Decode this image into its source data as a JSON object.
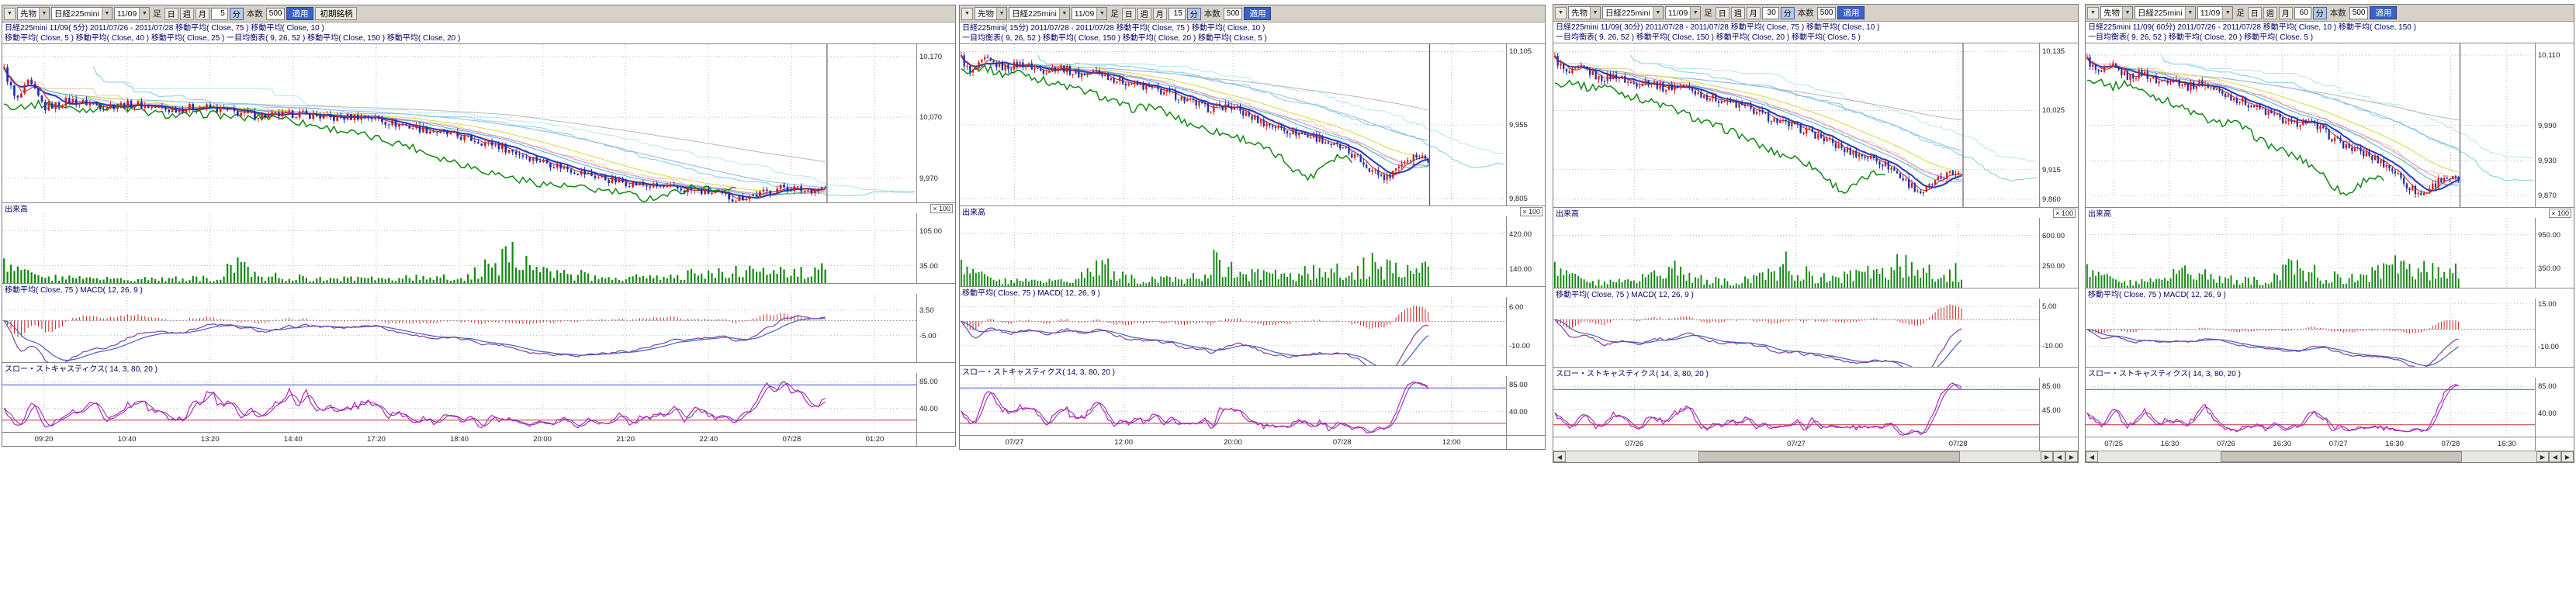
{
  "colors": {
    "up": "#cc2020",
    "down": "#2030a8",
    "volume": "#108810",
    "chikou": "#108810",
    "ma5": "#d02020",
    "ma10": "#2040c0",
    "ma20": "#48b8b8",
    "ma25": "#d888d8",
    "ma40": "#d8d840",
    "ma75": "#8fb8e8",
    "ma150": "#b8b8b8",
    "spanA": "#7fcfe2",
    "spanB": "#b9e4f0",
    "tenkan": "#d9b9e6",
    "kijun": "#e6c9a0",
    "macd": "#8040a0",
    "signal": "#4060c0",
    "hist": "#d02020",
    "stochK": "#c020c0",
    "stochD": "#7030a0",
    "stochHigh": "#4050d0",
    "stochLow": "#c03030",
    "grid": "#bcbcbc",
    "currentLine": "#404040"
  },
  "panels": [
    {
      "geom": {
        "bars": 240,
        "shift": 26
      },
      "toolbar": {
        "market": "先物",
        "symbol": "日経225mini",
        "contract": "11/09",
        "ashi": "足",
        "p_day": "日",
        "p_week": "週",
        "p_month": "月",
        "interval": "5",
        "unit": "分",
        "bars_label": "本数",
        "bars_value": "500",
        "apply": "適用",
        "extra": "初期銘柄"
      },
      "legend1": "日経225mini 11/09( 5分)  2011/07/26 - 2011/07/28   移動平均( Close, 75 )   移動平均( Close, 10 )",
      "legend2": "移動平均( Close, 5 )   移動平均( Close, 40 )   移動平均( Close, 25 )   一目均衡表( 9, 26, 52 )   移動平均( Close, 150 )   移動平均( Close, 20 )",
      "volume_title": "出来高",
      "volume_scale": "× 100",
      "macd_title": "移動平均( Close, 75 )    MACD( 12, 26, 9 )",
      "stoch_title": "スロー・ストキャスティクス( 14, 3, 80, 20 )",
      "main_range": [
        9930,
        10190
      ],
      "main_ticks": [
        {
          "v": 10170,
          "label": "10,170"
        },
        {
          "v": 10070,
          "label": "10,070"
        },
        {
          "v": 9970,
          "label": "9,970"
        }
      ],
      "vol_range": [
        0,
        140
      ],
      "vol_ticks": [
        {
          "v": 105,
          "label": "105.00"
        },
        {
          "v": 35,
          "label": "35.00"
        }
      ],
      "macd_range": [
        -14,
        9
      ],
      "macd_ticks": [
        {
          "v": 3.5,
          "label": "3.50"
        },
        {
          "v": -5,
          "label": "-5.00"
        }
      ],
      "stoch_ticks": [
        {
          "v": 85,
          "label": "85.00"
        },
        {
          "v": 40,
          "label": "40.00"
        }
      ],
      "stoch_lines": [
        80,
        20
      ],
      "time_labels": [
        "09:20",
        "10:40",
        "13:20",
        "14:40",
        "17:20",
        "18:40",
        "20:00",
        "21:20",
        "22:40",
        "07/28",
        "01:20"
      ],
      "price_path": [
        [
          0,
          10148
        ],
        [
          0.015,
          10095
        ],
        [
          0.03,
          10128
        ],
        [
          0.05,
          10085
        ],
        [
          0.08,
          10098
        ],
        [
          0.12,
          10088
        ],
        [
          0.16,
          10092
        ],
        [
          0.2,
          10082
        ],
        [
          0.24,
          10088
        ],
        [
          0.28,
          10078
        ],
        [
          0.32,
          10072
        ],
        [
          0.36,
          10076
        ],
        [
          0.4,
          10068
        ],
        [
          0.44,
          10072
        ],
        [
          0.48,
          10058
        ],
        [
          0.52,
          10048
        ],
        [
          0.56,
          10036
        ],
        [
          0.6,
          10024
        ],
        [
          0.63,
          10008
        ],
        [
          0.66,
          9996
        ],
        [
          0.7,
          9980
        ],
        [
          0.74,
          9966
        ],
        [
          0.78,
          9958
        ],
        [
          0.82,
          9952
        ],
        [
          0.86,
          9946
        ],
        [
          0.89,
          9936
        ],
        [
          0.92,
          9944
        ],
        [
          0.95,
          9956
        ],
        [
          0.975,
          9950
        ],
        [
          1,
          9954
        ]
      ],
      "volume_path": [
        [
          0,
          70
        ],
        [
          0.03,
          25
        ],
        [
          0.1,
          14
        ],
        [
          0.2,
          12
        ],
        [
          0.26,
          18
        ],
        [
          0.28,
          60
        ],
        [
          0.31,
          22
        ],
        [
          0.38,
          14
        ],
        [
          0.45,
          12
        ],
        [
          0.5,
          16
        ],
        [
          0.56,
          20
        ],
        [
          0.62,
          80
        ],
        [
          0.66,
          30
        ],
        [
          0.72,
          22
        ],
        [
          0.78,
          18
        ],
        [
          0.84,
          26
        ],
        [
          0.9,
          34
        ],
        [
          0.95,
          30
        ],
        [
          1,
          38
        ]
      ]
    },
    {
      "geom": {
        "bars": 160,
        "shift": 26
      },
      "toolbar": {
        "market": "先物",
        "symbol": "日経225mini",
        "contract": "11/09",
        "ashi": "足",
        "p_day": "日",
        "p_week": "週",
        "p_month": "月",
        "interval": "15",
        "unit": "分",
        "bars_label": "本数",
        "bars_value": "500",
        "apply": "適用"
      },
      "legend1": "日経225mini( 15分)  2011/07/28 - 2011/07/28   移動平均( Close, 75 )   移動平均( Close, 10 )",
      "legend2": "一目均衡表( 9, 26, 52 )   移動平均( Close, 150 )   移動平均( Close, 20 )   移動平均( Close, 5 )",
      "volume_title": "出来高",
      "volume_scale": "× 100",
      "macd_title": "移動平均( Close, 75 )    MACD( 12, 26, 9 )",
      "stoch_title": "スロー・ストキャスティクス( 14, 3, 80, 20 )",
      "main_range": [
        9790,
        10120
      ],
      "main_ticks": [
        {
          "v": 10105,
          "label": "10,105"
        },
        {
          "v": 9955,
          "label": "9,955"
        },
        {
          "v": 9805,
          "label": "9,805"
        }
      ],
      "vol_range": [
        0,
        560
      ],
      "vol_ticks": [
        {
          "v": 420,
          "label": "420.00"
        },
        {
          "v": 140,
          "label": "140.00"
        }
      ],
      "macd_range": [
        -18,
        10
      ],
      "macd_ticks": [
        {
          "v": 6,
          "label": "6.00"
        },
        {
          "v": -10,
          "label": "-10.00"
        }
      ],
      "stoch_ticks": [
        {
          "v": 85,
          "label": "85.00"
        },
        {
          "v": 40,
          "label": "40.00"
        }
      ],
      "stoch_lines": [
        80,
        20
      ],
      "time_labels": [
        "07/27",
        "12:00",
        "20:00",
        "07/28",
        "12:00"
      ],
      "price_path": [
        [
          0,
          10092
        ],
        [
          0.02,
          10058
        ],
        [
          0.05,
          10088
        ],
        [
          0.09,
          10072
        ],
        [
          0.13,
          10080
        ],
        [
          0.17,
          10066
        ],
        [
          0.21,
          10074
        ],
        [
          0.25,
          10058
        ],
        [
          0.29,
          10064
        ],
        [
          0.33,
          10048
        ],
        [
          0.37,
          10038
        ],
        [
          0.41,
          10028
        ],
        [
          0.45,
          10018
        ],
        [
          0.49,
          10002
        ],
        [
          0.53,
          9988
        ],
        [
          0.57,
          9994
        ],
        [
          0.61,
          9976
        ],
        [
          0.65,
          9958
        ],
        [
          0.69,
          9946
        ],
        [
          0.73,
          9936
        ],
        [
          0.77,
          9926
        ],
        [
          0.81,
          9908
        ],
        [
          0.85,
          9886
        ],
        [
          0.88,
          9862
        ],
        [
          0.91,
          9846
        ],
        [
          0.94,
          9876
        ],
        [
          0.97,
          9892
        ],
        [
          1,
          9886
        ]
      ],
      "volume_path": [
        [
          0,
          300
        ],
        [
          0.04,
          120
        ],
        [
          0.1,
          70
        ],
        [
          0.18,
          60
        ],
        [
          0.25,
          90
        ],
        [
          0.3,
          260
        ],
        [
          0.35,
          110
        ],
        [
          0.42,
          80
        ],
        [
          0.5,
          100
        ],
        [
          0.55,
          320
        ],
        [
          0.6,
          140
        ],
        [
          0.68,
          120
        ],
        [
          0.75,
          160
        ],
        [
          0.82,
          200
        ],
        [
          0.88,
          260
        ],
        [
          0.93,
          180
        ],
        [
          1,
          200
        ]
      ]
    },
    {
      "geom": {
        "bars": 140,
        "shift": 26
      },
      "toolbar": {
        "market": "先物",
        "symbol": "日経225mini",
        "contract": "11/09",
        "ashi": "足",
        "p_day": "日",
        "p_week": "週",
        "p_month": "月",
        "interval": "30",
        "unit": "分",
        "bars_label": "本数",
        "bars_value": "500",
        "apply": "適用"
      },
      "legend1": "日経225mini 11/09( 30分)  2011/07/28 - 2011/07/28   移動平均( Close, 75 )   移動平均( Close, 10 )",
      "legend2": "一目均衡表( 9, 26, 52 )   移動平均( Close, 150 )   移動平均( Close, 20 )   移動平均( Close, 5 )",
      "volume_title": "出来高",
      "volume_scale": "× 100",
      "macd_title": "移動平均( Close, 75 )    MACD( 12, 26, 9 )",
      "stoch_title": "スロー・ストキャスティクス( 14, 3, 80, 20 )",
      "main_range": [
        9845,
        10150
      ],
      "main_ticks": [
        {
          "v": 10135,
          "label": "10,135"
        },
        {
          "v": 10025,
          "label": "10,025"
        },
        {
          "v": 9915,
          "label": "9,915"
        },
        {
          "v": 9860,
          "label": "9,860"
        }
      ],
      "vol_range": [
        0,
        800
      ],
      "vol_ticks": [
        {
          "v": 600,
          "label": "600.00"
        },
        {
          "v": 250,
          "label": "250.00"
        }
      ],
      "macd_range": [
        -18,
        8
      ],
      "macd_ticks": [
        {
          "v": 5,
          "label": "5.00"
        },
        {
          "v": -10,
          "label": "-10.00"
        }
      ],
      "stoch_ticks": [
        {
          "v": 85,
          "label": "85.00"
        },
        {
          "v": 45,
          "label": "45.00"
        }
      ],
      "stoch_lines": [
        80,
        20
      ],
      "time_labels": [
        "07/26",
        "07/27",
        "07/28"
      ],
      "price_path": [
        [
          0,
          10122
        ],
        [
          0.03,
          10092
        ],
        [
          0.07,
          10104
        ],
        [
          0.11,
          10084
        ],
        [
          0.15,
          10090
        ],
        [
          0.19,
          10074
        ],
        [
          0.23,
          10080
        ],
        [
          0.27,
          10066
        ],
        [
          0.31,
          10072
        ],
        [
          0.35,
          10058
        ],
        [
          0.39,
          10048
        ],
        [
          0.43,
          10040
        ],
        [
          0.47,
          10030
        ],
        [
          0.51,
          10018
        ],
        [
          0.55,
          10004
        ],
        [
          0.59,
          9994
        ],
        [
          0.63,
          9984
        ],
        [
          0.67,
          9968
        ],
        [
          0.71,
          9952
        ],
        [
          0.75,
          9942
        ],
        [
          0.79,
          9934
        ],
        [
          0.83,
          9916
        ],
        [
          0.86,
          9894
        ],
        [
          0.9,
          9872
        ],
        [
          0.93,
          9888
        ],
        [
          0.96,
          9904
        ],
        [
          1,
          9912
        ]
      ],
      "volume_path": [
        [
          0,
          420
        ],
        [
          0.05,
          160
        ],
        [
          0.12,
          100
        ],
        [
          0.2,
          120
        ],
        [
          0.28,
          380
        ],
        [
          0.34,
          150
        ],
        [
          0.42,
          120
        ],
        [
          0.5,
          160
        ],
        [
          0.56,
          420
        ],
        [
          0.63,
          200
        ],
        [
          0.7,
          170
        ],
        [
          0.78,
          240
        ],
        [
          0.85,
          380
        ],
        [
          0.92,
          280
        ],
        [
          1,
          300
        ]
      ]
    },
    {
      "geom": {
        "bars": 130,
        "shift": 26
      },
      "toolbar": {
        "market": "先物",
        "symbol": "日経225mini",
        "contract": "11/09",
        "ashi": "足",
        "p_day": "日",
        "p_week": "週",
        "p_month": "月",
        "interval": "60",
        "unit": "分",
        "bars_label": "本数",
        "bars_value": "500",
        "apply": "適用"
      },
      "legend1": "日経225mini 11/09( 60分)  2011/07/26 - 2011/07/28   移動平均( Close, 10 )   移動平均( Close, 150 )",
      "legend2": "一目均衡表( 9, 26, 52 )   移動平均( Close, 20 )   移動平均( Close, 5 )",
      "volume_title": "出来高",
      "volume_scale": "× 100",
      "macd_title": "移動平均( Close, 75 )    MACD( 12, 26, 9 )",
      "stoch_title": "スロー・ストキャスティクス( 14, 3, 80, 20 )",
      "main_range": [
        9850,
        10130
      ],
      "main_ticks": [
        {
          "v": 10110,
          "label": "10,110"
        },
        {
          "v": 9990,
          "label": "9,990"
        },
        {
          "v": 9930,
          "label": "9,930"
        },
        {
          "v": 9870,
          "label": "9,870"
        }
      ],
      "vol_range": [
        0,
        1250
      ],
      "vol_ticks": [
        {
          "v": 950,
          "label": "950.00"
        },
        {
          "v": 350,
          "label": "350.00"
        }
      ],
      "macd_range": [
        -22,
        18
      ],
      "macd_ticks": [
        {
          "v": 15,
          "label": "15.00"
        },
        {
          "v": -10,
          "label": "-10.00"
        }
      ],
      "stoch_ticks": [
        {
          "v": 85,
          "label": "85.00"
        },
        {
          "v": 40,
          "label": "40.00"
        }
      ],
      "stoch_lines": [
        80,
        20
      ],
      "time_labels": [
        "07/25",
        "16:30",
        "07/26",
        "16:30",
        "07/27",
        "16:30",
        "07/28",
        "16:30"
      ],
      "price_path": [
        [
          0,
          10102
        ],
        [
          0.03,
          10078
        ],
        [
          0.07,
          10090
        ],
        [
          0.11,
          10072
        ],
        [
          0.15,
          10080
        ],
        [
          0.19,
          10064
        ],
        [
          0.23,
          10070
        ],
        [
          0.27,
          10056
        ],
        [
          0.31,
          10062
        ],
        [
          0.35,
          10048
        ],
        [
          0.39,
          10038
        ],
        [
          0.43,
          10028
        ],
        [
          0.47,
          10016
        ],
        [
          0.51,
          10004
        ],
        [
          0.55,
          9992
        ],
        [
          0.59,
          9998
        ],
        [
          0.63,
          9982
        ],
        [
          0.67,
          9964
        ],
        [
          0.71,
          9950
        ],
        [
          0.75,
          9940
        ],
        [
          0.79,
          9928
        ],
        [
          0.83,
          9910
        ],
        [
          0.86,
          9888
        ],
        [
          0.9,
          9870
        ],
        [
          0.93,
          9886
        ],
        [
          0.96,
          9902
        ],
        [
          1,
          9896
        ]
      ],
      "volume_path": [
        [
          0,
          600
        ],
        [
          0.05,
          250
        ],
        [
          0.12,
          160
        ],
        [
          0.2,
          200
        ],
        [
          0.27,
          560
        ],
        [
          0.34,
          240
        ],
        [
          0.42,
          200
        ],
        [
          0.5,
          260
        ],
        [
          0.56,
          640
        ],
        [
          0.63,
          300
        ],
        [
          0.7,
          260
        ],
        [
          0.78,
          380
        ],
        [
          0.85,
          600
        ],
        [
          0.92,
          420
        ],
        [
          1,
          460
        ]
      ]
    }
  ]
}
